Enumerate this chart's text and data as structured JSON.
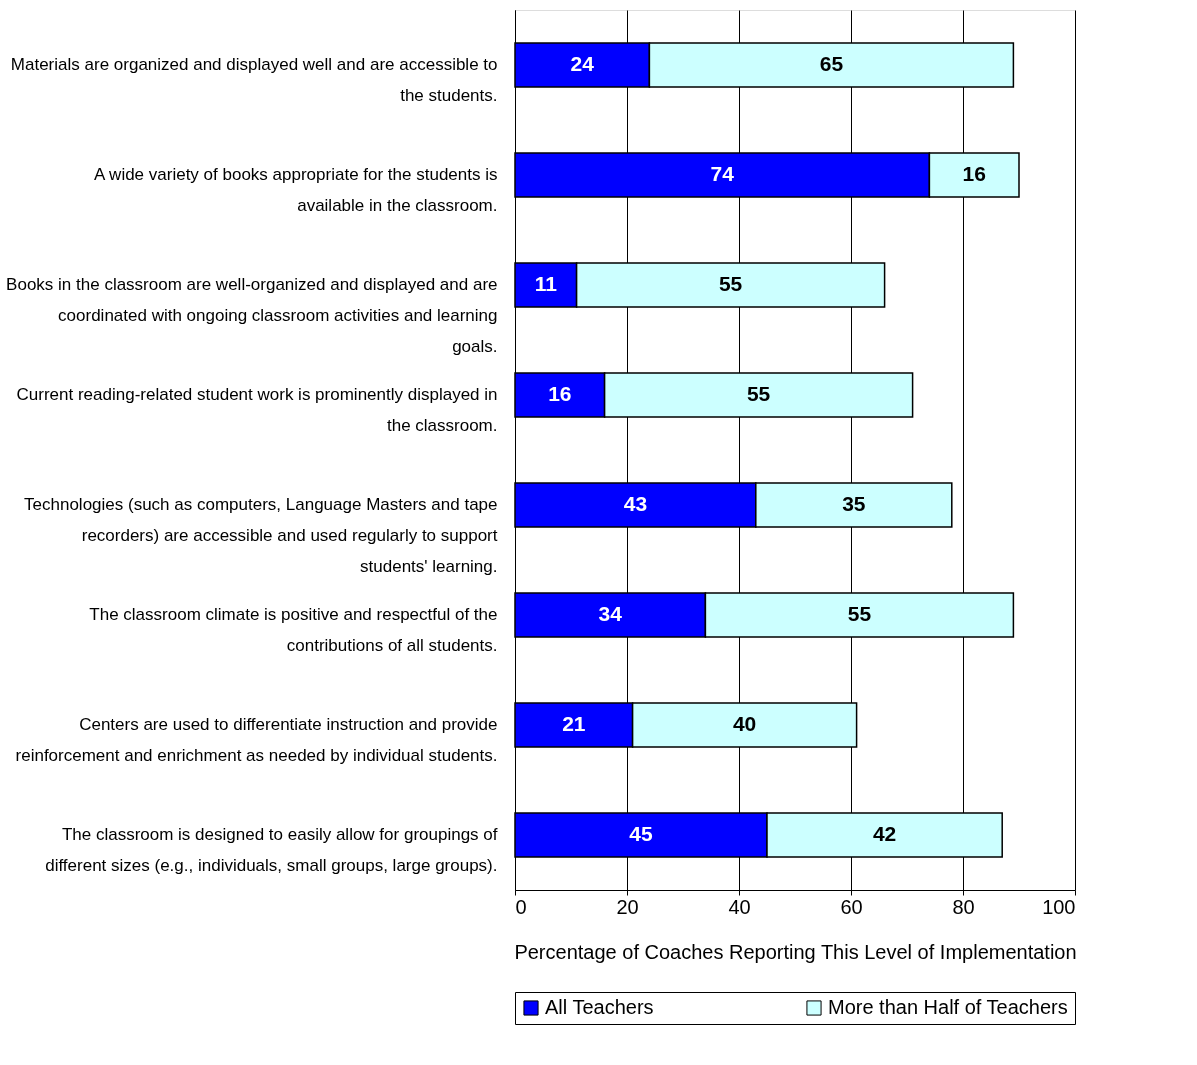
{
  "chart_data": {
    "type": "bar",
    "orientation": "horizontal",
    "stacked": true,
    "data_labels": true,
    "xlabel": "Percentage of Coaches Reporting This Level of Implementation",
    "categories": [
      "Materials are organized and displayed well and are accessible to the students.",
      "A wide variety of books appropriate for the students is available in the classroom.",
      "Books in the classroom are well-organized and displayed and are coordinated with ongoing classroom activities and learning goals.",
      "Current reading-related student work is prominently displayed in the classroom.",
      "Technologies (such as computers, Language Masters and tape recorders) are accessible and used regularly to support students' learning.",
      "The classroom climate is positive and respectful of the contributions of all students.",
      "Centers are used to differentiate instruction and provide reinforcement and enrichment as needed by individual students.",
      "The classroom is designed to easily allow for groupings of different sizes (e.g., individuals, small groups, large groups)."
    ],
    "series": [
      {
        "name": "All Teachers",
        "color": "#0000ff",
        "values": [
          24,
          74,
          11,
          16,
          43,
          34,
          21,
          45
        ]
      },
      {
        "name": "More than Half of Teachers",
        "color": "#ccffff",
        "values": [
          65,
          16,
          55,
          55,
          35,
          55,
          40,
          42
        ]
      }
    ],
    "xlim": [
      0,
      100
    ],
    "xticks": [
      0,
      20,
      40,
      60,
      80,
      100
    ],
    "grid": "x",
    "legend": "bottom"
  }
}
